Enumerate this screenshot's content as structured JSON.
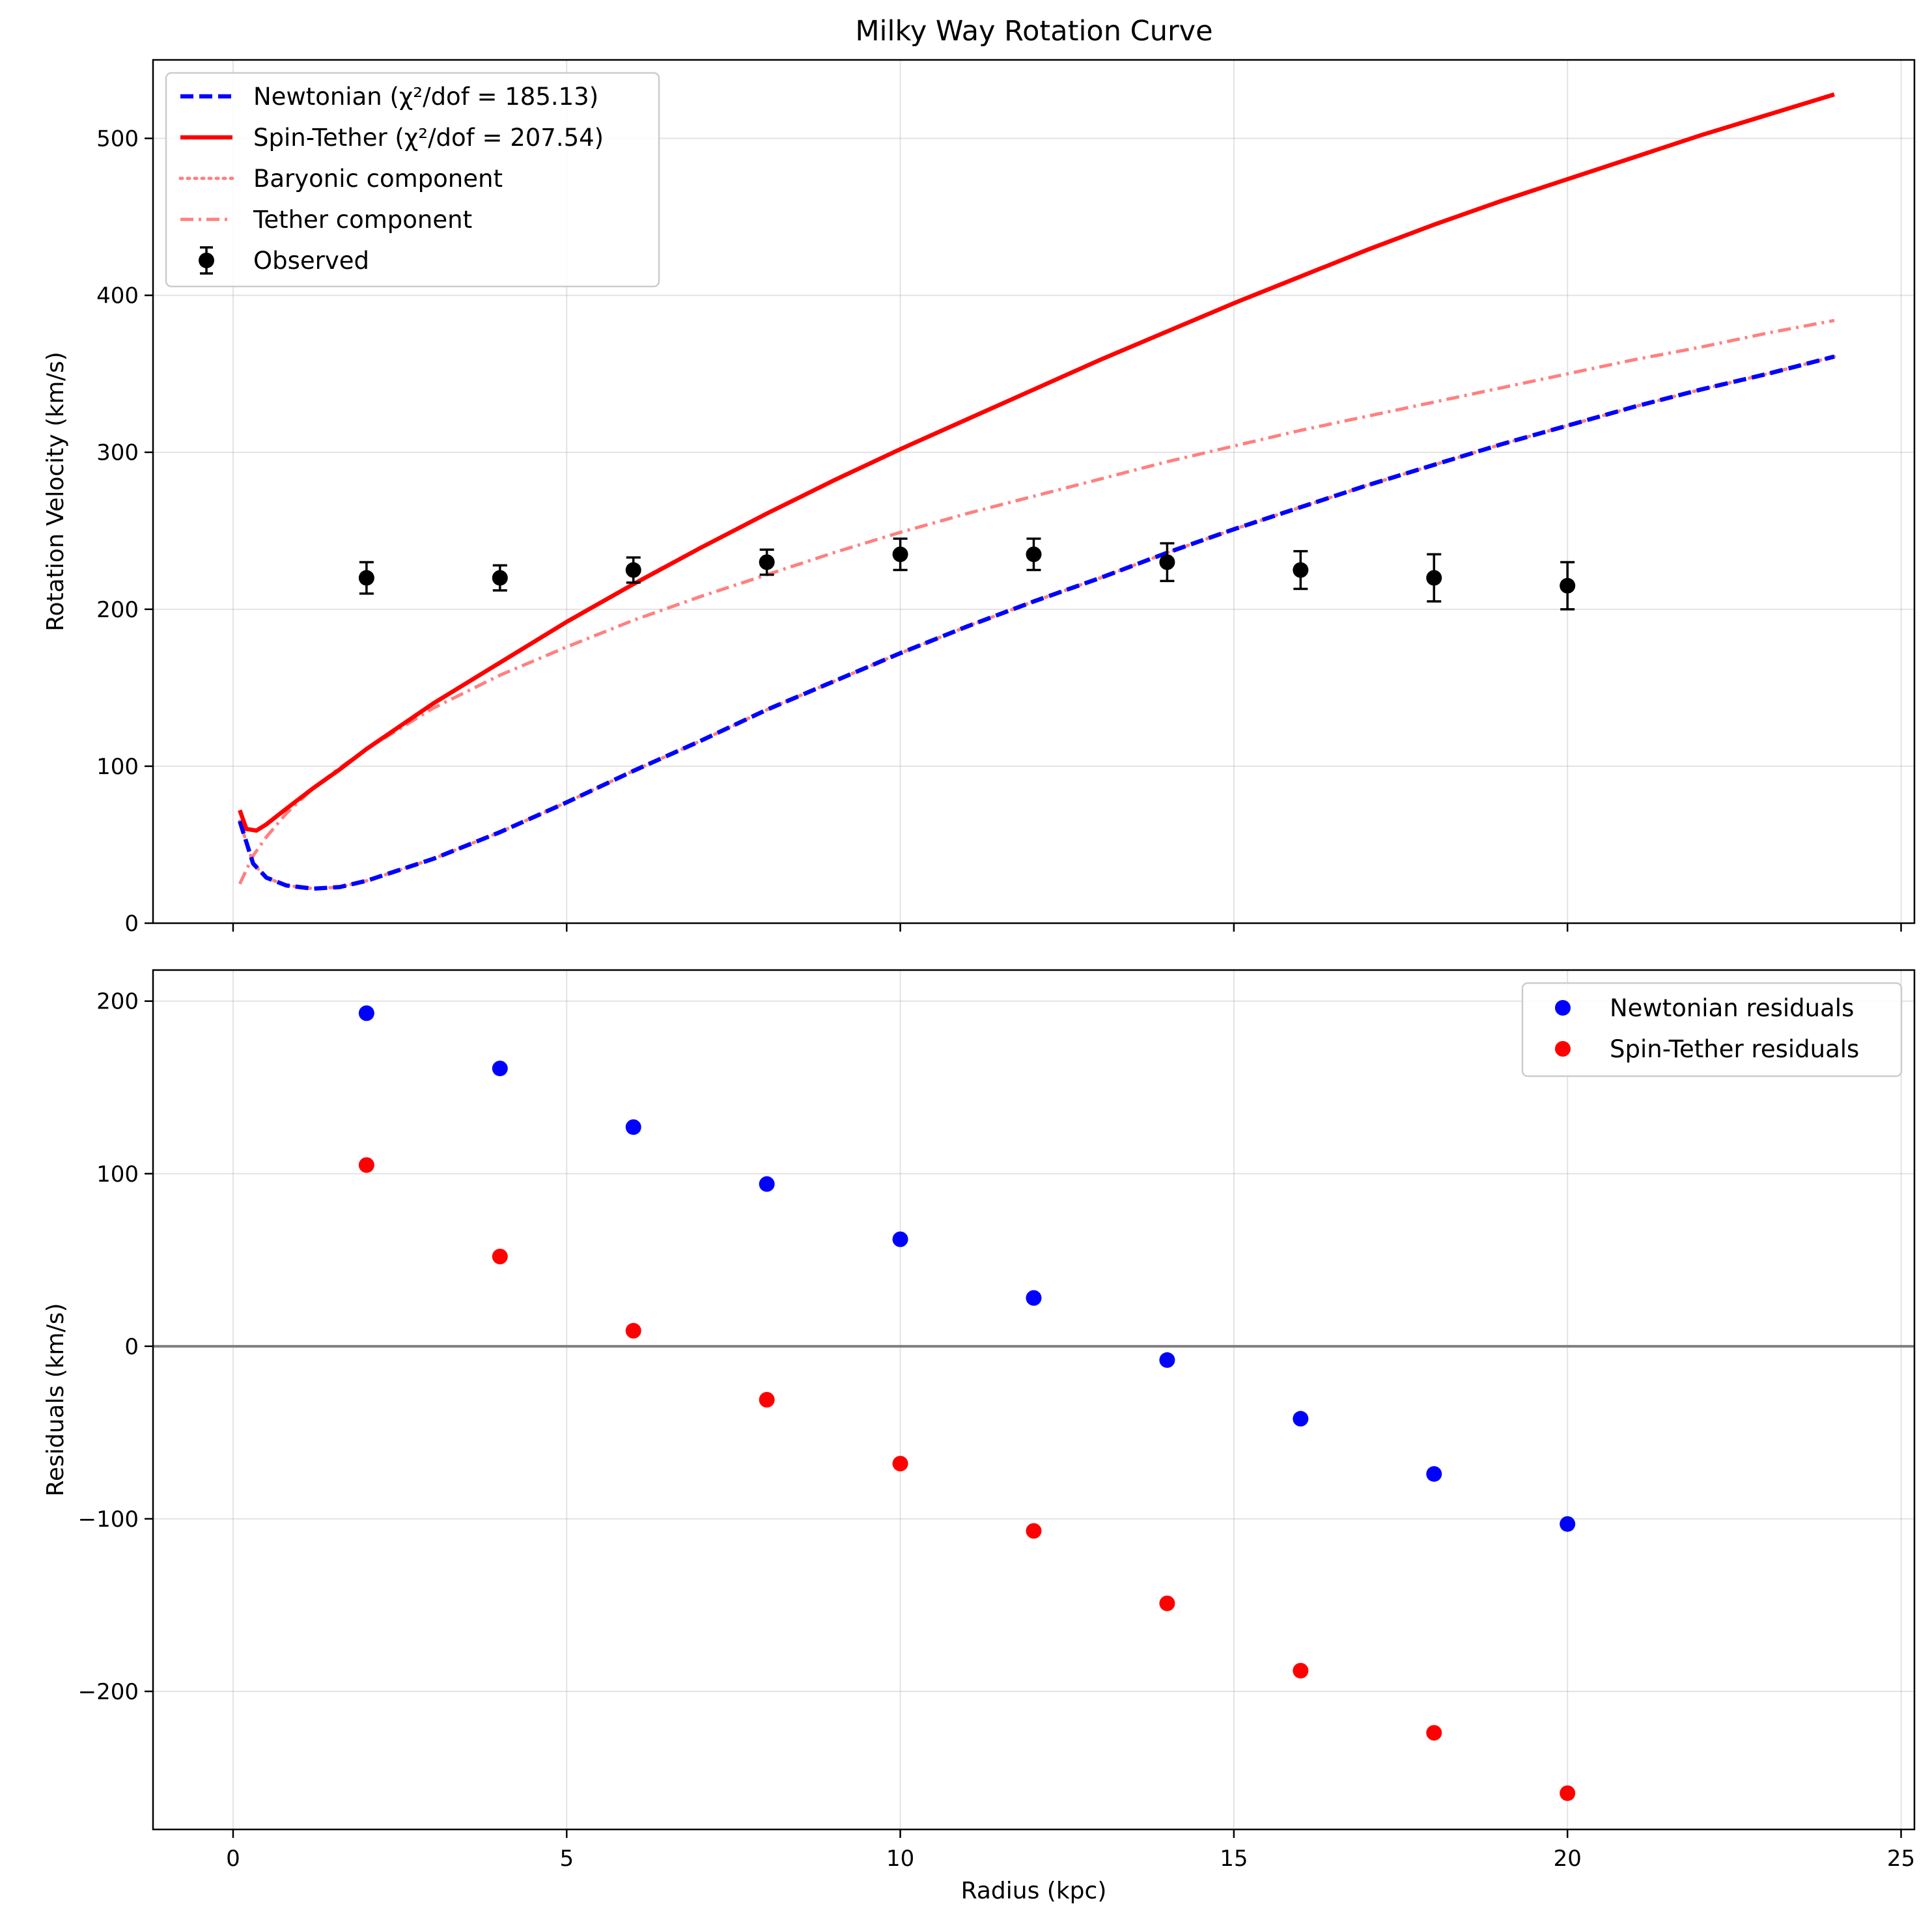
{
  "figure": {
    "title": "Milky Way Rotation Curve"
  },
  "chart_data": [
    {
      "type": "line",
      "title": "Milky Way Rotation Curve",
      "xlabel": "",
      "ylabel": "Rotation Velocity (km/s)",
      "xlim": [
        -1.2,
        25.2
      ],
      "ylim": [
        0,
        550
      ],
      "xticks": [
        0,
        5,
        10,
        15,
        20,
        25
      ],
      "yticks": [
        0,
        100,
        200,
        300,
        400,
        500
      ],
      "grid": true,
      "legend_position": "top-left",
      "series": [
        {
          "name": "Newtonian (χ²/dof = 185.13)",
          "color": "#0000ff",
          "style": "dashed",
          "x": [
            0.1,
            0.3,
            0.5,
            0.8,
            1.2,
            1.6,
            2,
            3,
            4,
            5,
            6,
            7,
            8,
            9,
            10,
            11,
            12,
            13,
            14,
            15,
            16,
            17,
            18,
            19,
            20,
            21,
            22,
            23,
            24
          ],
          "y": [
            65,
            38,
            29,
            24,
            22,
            23,
            27,
            41,
            58,
            77,
            97,
            116,
            136,
            154,
            172,
            189,
            205,
            220,
            236,
            251,
            265,
            279,
            292,
            305,
            317,
            329,
            340,
            350,
            361
          ]
        },
        {
          "name": "Spin-Tether (χ²/dof = 207.54)",
          "color": "#ff0000",
          "style": "solid",
          "x": [
            0.1,
            0.2,
            0.35,
            0.5,
            0.8,
            1.2,
            1.6,
            2,
            3,
            4,
            5,
            6,
            7,
            8,
            9,
            10,
            11,
            12,
            13,
            14,
            15,
            16,
            17,
            18,
            19,
            20,
            21,
            22,
            23,
            24
          ],
          "y": [
            72,
            60,
            59,
            63,
            73,
            86,
            98,
            111,
            140,
            166,
            192,
            216,
            239,
            261,
            282,
            302,
            321,
            340,
            359,
            377,
            395,
            412,
            429,
            445,
            460,
            474,
            488,
            502,
            515,
            528
          ]
        },
        {
          "name": "Baryonic component",
          "color": "#ff8080",
          "style": "dotted",
          "x": [
            0.1,
            0.3,
            0.5,
            0.8,
            1.2,
            1.6,
            2,
            3,
            4,
            5,
            6,
            7,
            8,
            9,
            10,
            11,
            12,
            13,
            14,
            15,
            16,
            17,
            18,
            19,
            20,
            21,
            22,
            23,
            24
          ],
          "y": [
            65,
            38,
            29,
            24,
            22,
            23,
            27,
            41,
            58,
            77,
            97,
            116,
            136,
            154,
            172,
            189,
            205,
            220,
            236,
            251,
            265,
            279,
            292,
            305,
            317,
            329,
            340,
            350,
            361
          ]
        },
        {
          "name": "Tether component",
          "color": "#ff8080",
          "style": "dashdot",
          "x": [
            0.1,
            0.3,
            0.5,
            0.8,
            1.2,
            1.6,
            2,
            3,
            4,
            5,
            6,
            7,
            8,
            9,
            10,
            11,
            12,
            13,
            14,
            15,
            16,
            17,
            18,
            19,
            20,
            21,
            22,
            23,
            24
          ],
          "y": [
            25,
            43,
            55,
            70,
            86,
            99,
            111,
            137,
            158,
            176,
            193,
            208,
            222,
            236,
            249,
            261,
            272,
            283,
            294,
            304,
            314,
            323,
            332,
            341,
            350,
            359,
            367,
            376,
            384
          ]
        }
      ],
      "observed": {
        "name": "Observed",
        "color": "#000000",
        "x": [
          2,
          4,
          6,
          8,
          10,
          12,
          14,
          16,
          18,
          20
        ],
        "y": [
          220,
          220,
          225,
          230,
          235,
          235,
          230,
          225,
          220,
          215
        ],
        "yerr": [
          10,
          8,
          8,
          8,
          10,
          10,
          12,
          12,
          15,
          15
        ]
      }
    },
    {
      "type": "scatter",
      "title": "",
      "xlabel": "Radius (kpc)",
      "ylabel": "Residuals (km/s)",
      "xlim": [
        -1.2,
        25.2
      ],
      "ylim": [
        -280,
        218
      ],
      "xticks": [
        0,
        5,
        10,
        15,
        20,
        25
      ],
      "yticks": [
        -200,
        -100,
        0,
        100,
        200
      ],
      "zero_line": 0,
      "grid": true,
      "legend_position": "top-right",
      "series": [
        {
          "name": "Newtonian residuals",
          "color": "#0000ff",
          "x": [
            2,
            4,
            6,
            8,
            10,
            12,
            14,
            16,
            18,
            20
          ],
          "y": [
            193,
            161,
            127,
            94,
            62,
            28,
            -8,
            -42,
            -74,
            -103
          ]
        },
        {
          "name": "Spin-Tether residuals",
          "color": "#ff0000",
          "x": [
            2,
            4,
            6,
            8,
            10,
            12,
            14,
            16,
            18,
            20
          ],
          "y": [
            105,
            52,
            9,
            -31,
            -68,
            -107,
            -149,
            -188,
            -224,
            -259
          ]
        }
      ]
    }
  ]
}
